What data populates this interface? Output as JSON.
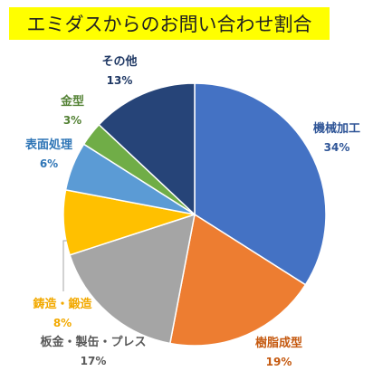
{
  "chart_data": {
    "type": "pie",
    "title": "エミダスからのお問い合わせ割合",
    "title_background": "#FFFF00",
    "slices": [
      {
        "label": "機械加工",
        "value": 34,
        "percent_text": "34%",
        "color": "#4472C4",
        "label_color": "#2F5597"
      },
      {
        "label": "樹脂成型",
        "value": 19,
        "percent_text": "19%",
        "color": "#ED7D31",
        "label_color": "#C55A11"
      },
      {
        "label": "板金・製缶・プレス",
        "value": 17,
        "percent_text": "17%",
        "color": "#A5A5A5",
        "label_color": "#595959"
      },
      {
        "label": "鋳造・鍛造",
        "value": 8,
        "percent_text": "8%",
        "color": "#FFC000",
        "label_color": "#F2A900"
      },
      {
        "label": "表面処理",
        "value": 6,
        "percent_text": "6%",
        "color": "#5B9BD5",
        "label_color": "#2E75B6"
      },
      {
        "label": "金型",
        "value": 3,
        "percent_text": "3%",
        "color": "#70AD47",
        "label_color": "#548235"
      },
      {
        "label": "その他",
        "value": 13,
        "percent_text": "13%",
        "color": "#264478",
        "label_color": "#1F3864"
      }
    ],
    "start_angle": "12 o'clock",
    "direction": "clockwise",
    "legend": "none"
  }
}
